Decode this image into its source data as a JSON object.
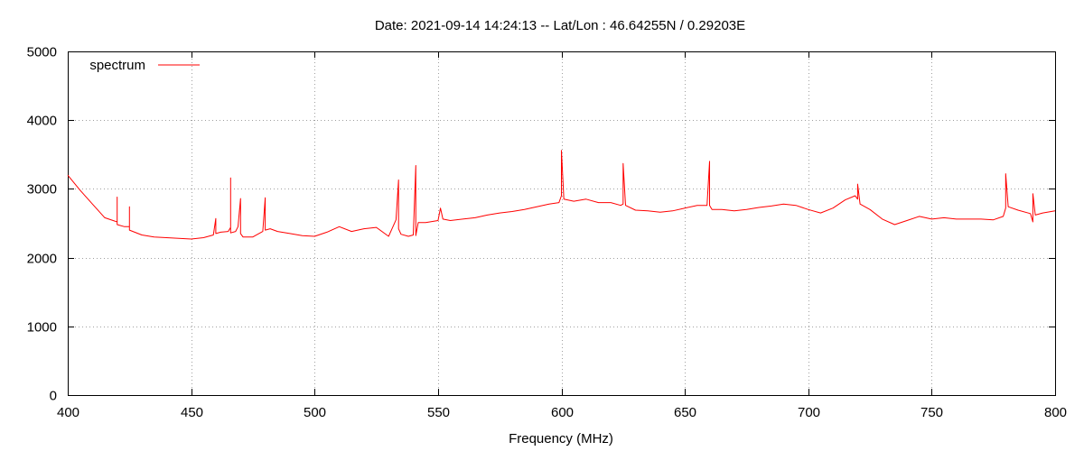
{
  "chart_data": {
    "type": "line",
    "title": "Date: 2021-09-14 14:24:13  --  Lat/Lon : 46.64255N / 0.29203E",
    "xlabel": "Frequency (MHz)",
    "ylabel": "",
    "xlim": [
      400,
      800
    ],
    "ylim": [
      0,
      5000
    ],
    "x_ticks": [
      400,
      450,
      500,
      550,
      600,
      650,
      700,
      750,
      800
    ],
    "y_ticks": [
      0,
      1000,
      2000,
      3000,
      4000,
      5000
    ],
    "grid": true,
    "legend_position": "top-left",
    "series": [
      {
        "name": "spectrum",
        "color": "#ff0000",
        "x": [
          400,
          405,
          410,
          415,
          420,
          420,
          420,
          423,
          425,
          425,
          425,
          430,
          435,
          440,
          445,
          450,
          455,
          459,
          460,
          460,
          462,
          465,
          466,
          466,
          466,
          468,
          469,
          470,
          470,
          471,
          475,
          479,
          480,
          480,
          482,
          485,
          490,
          495,
          500,
          505,
          510,
          515,
          520,
          525,
          530,
          533,
          534,
          534,
          535,
          538,
          540,
          541,
          541,
          542,
          545,
          550,
          551,
          552,
          555,
          560,
          565,
          570,
          575,
          580,
          585,
          590,
          595,
          599,
          600,
          600,
          601,
          605,
          610,
          615,
          620,
          624,
          625,
          625,
          626,
          630,
          635,
          640,
          645,
          650,
          655,
          659,
          660,
          660,
          661,
          665,
          670,
          675,
          680,
          685,
          690,
          695,
          700,
          705,
          710,
          715,
          719,
          720,
          720,
          721,
          725,
          730,
          735,
          740,
          745,
          750,
          755,
          760,
          765,
          770,
          775,
          779,
          780,
          780,
          781,
          785,
          790,
          791,
          791,
          792,
          795,
          800
        ],
        "y": [
          3200,
          2980,
          2780,
          2580,
          2520,
          2880,
          2480,
          2450,
          2450,
          2740,
          2400,
          2330,
          2300,
          2290,
          2280,
          2270,
          2290,
          2330,
          2570,
          2350,
          2370,
          2380,
          2440,
          3160,
          2360,
          2380,
          2450,
          2860,
          2350,
          2300,
          2300,
          2380,
          2870,
          2400,
          2420,
          2380,
          2350,
          2320,
          2310,
          2370,
          2450,
          2380,
          2420,
          2440,
          2310,
          2550,
          3130,
          2420,
          2340,
          2310,
          2330,
          3340,
          2320,
          2510,
          2510,
          2540,
          2720,
          2560,
          2540,
          2560,
          2580,
          2620,
          2650,
          2670,
          2700,
          2740,
          2780,
          2800,
          2900,
          3560,
          2850,
          2820,
          2850,
          2800,
          2800,
          2760,
          2780,
          3370,
          2760,
          2690,
          2680,
          2660,
          2680,
          2720,
          2760,
          2760,
          3400,
          2760,
          2700,
          2700,
          2680,
          2700,
          2730,
          2750,
          2780,
          2760,
          2700,
          2650,
          2720,
          2840,
          2900,
          2850,
          3070,
          2780,
          2700,
          2560,
          2480,
          2540,
          2600,
          2560,
          2580,
          2560,
          2560,
          2560,
          2550,
          2600,
          2720,
          3220,
          2740,
          2690,
          2640,
          2520,
          2930,
          2620,
          2650,
          2680
        ]
      }
    ]
  }
}
